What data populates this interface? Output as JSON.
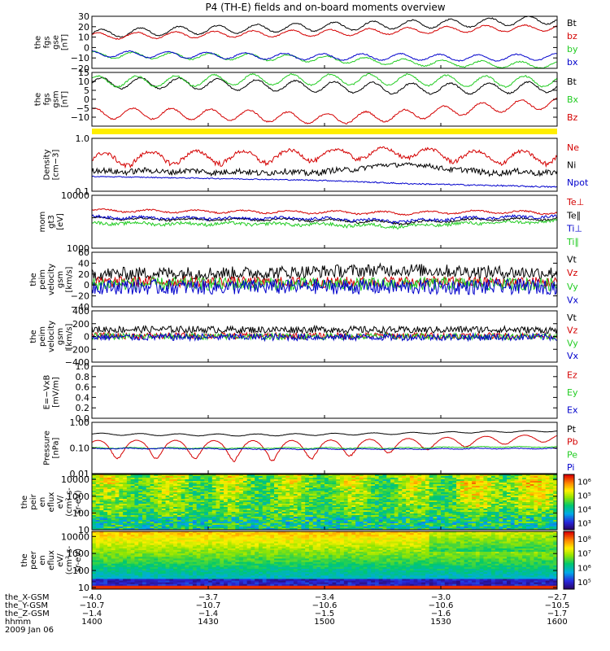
{
  "title": "P4 (TH-E) fields and on-board moments overview",
  "colors": {
    "black": "#000000",
    "red": "#d40000",
    "green": "#22cc22",
    "blue": "#0000cc",
    "yellow": "#ffee00"
  },
  "chart_data": [
    {
      "id": "fgs_gse",
      "type": "line",
      "ylabel": [
        "the",
        "fgs",
        "gse",
        "[nT]"
      ],
      "ylim": [
        -20,
        30
      ],
      "yticks": [
        "30",
        "20",
        "10",
        "0",
        "−10",
        "−20"
      ],
      "yticks_values": [
        30,
        20,
        10,
        0,
        -10,
        -20
      ],
      "series": [
        {
          "name": "Bt",
          "color": "#000000",
          "base": [
            13,
            16,
            18,
            20,
            22,
            24,
            27
          ],
          "amp": 4,
          "periods": 12,
          "noise": 0.6
        },
        {
          "name": "bz",
          "color": "#d40000",
          "base": [
            11,
            12,
            13,
            14,
            16,
            18,
            19
          ],
          "amp": 3,
          "periods": 12,
          "noise": 0.5
        },
        {
          "name": "by",
          "color": "#22cc22",
          "base": [
            -7,
            -8,
            -9,
            -11,
            -14,
            -16,
            -17
          ],
          "amp": 3,
          "periods": 12,
          "noise": 0.6
        },
        {
          "name": "bx",
          "color": "#0000cc",
          "base": [
            -6,
            -7,
            -8,
            -9,
            -9,
            -10,
            -9
          ],
          "amp": 3,
          "periods": 12,
          "noise": 0.5
        }
      ]
    },
    {
      "id": "fgs_gsm",
      "type": "line",
      "ylabel": [
        "the",
        "fgs",
        "gsm",
        "[nT]"
      ],
      "ylim": [
        -15,
        15
      ],
      "yticks": [
        "15",
        "10",
        "5",
        "0",
        "−5",
        "−10"
      ],
      "yticks_values": [
        15,
        10,
        5,
        0,
        -5,
        -10
      ],
      "series": [
        {
          "name": "Bt",
          "color": "#000000",
          "base": [
            9,
            9,
            8,
            7,
            6,
            6,
            7
          ],
          "amp": 3,
          "periods": 12,
          "noise": 0.4
        },
        {
          "name": "Bx",
          "color": "#22cc22",
          "base": [
            10,
            10,
            11,
            11,
            11,
            10,
            10
          ],
          "amp": 3,
          "periods": 12,
          "noise": 0.4
        },
        {
          "name": "Bz",
          "color": "#d40000",
          "base": [
            -8,
            -8,
            -9,
            -11,
            -9,
            -5,
            -2
          ],
          "amp": 3,
          "periods": 12,
          "noise": 0.4
        }
      ]
    },
    {
      "id": "density",
      "type": "line",
      "scale": "log",
      "ylabel": [
        "Density",
        "[cm−3]"
      ],
      "ylim": [
        0.1,
        1.0
      ],
      "yticks": [
        "1.0",
        "0.1"
      ],
      "yticks_values": [
        1.0,
        0.1
      ],
      "series": [
        {
          "name": "Ne",
          "color": "#d40000",
          "base": [
            0.4,
            0.45,
            0.45,
            0.5,
            0.55,
            0.45,
            0.45
          ],
          "amp": 0.12,
          "periods": 10,
          "noise": 0.04
        },
        {
          "name": "Ni",
          "color": "#000000",
          "base": [
            0.24,
            0.24,
            0.23,
            0.23,
            0.33,
            0.23,
            0.23
          ],
          "amp": 0.01,
          "periods": 10,
          "noise": 0.03
        },
        {
          "name": "Npot",
          "color": "#0000cc",
          "base": [
            0.19,
            0.18,
            0.17,
            0.16,
            0.14,
            0.13,
            0.12
          ],
          "amp": 0,
          "periods": 1,
          "noise": 0.004
        }
      ]
    },
    {
      "id": "mom_temp",
      "type": "line",
      "scale": "log",
      "ylabel": [
        "mom",
        "gt3",
        "[eV]"
      ],
      "ylim": [
        1000,
        10000
      ],
      "yticks": [
        "10000",
        "1000"
      ],
      "yticks_values": [
        10000,
        1000
      ],
      "series": [
        {
          "name": "Te⊥",
          "color": "#d40000",
          "base": [
            5200,
            5000,
            4900,
            4800,
            4600,
            4900,
            4700
          ],
          "amp": 300,
          "periods": 10,
          "noise": 150
        },
        {
          "name": "Te∥",
          "color": "#000000",
          "base": [
            3700,
            3500,
            3500,
            3400,
            3000,
            3500,
            3600
          ],
          "amp": 150,
          "periods": 10,
          "noise": 150
        },
        {
          "name": "Ti⊥",
          "color": "#0000cc",
          "base": [
            3900,
            3700,
            3700,
            3600,
            3200,
            3800,
            4000
          ],
          "amp": 150,
          "periods": 10,
          "noise": 220
        },
        {
          "name": "Ti∥",
          "color": "#22cc22",
          "base": [
            3000,
            2900,
            2900,
            2800,
            2600,
            3000,
            3200
          ],
          "amp": 120,
          "periods": 10,
          "noise": 200
        }
      ]
    },
    {
      "id": "peim_gsm_a",
      "type": "line",
      "ylabel": [
        "the",
        "peim",
        "velocity",
        "gsm",
        "[km/s]"
      ],
      "ylim": [
        -40,
        60
      ],
      "yticks": [
        "60",
        "40",
        "20",
        "0",
        "−20",
        "−40"
      ],
      "yticks_values": [
        60,
        40,
        20,
        0,
        -20,
        -40
      ],
      "series": [
        {
          "name": "Vt",
          "color": "#000000",
          "base": [
            20,
            22,
            22,
            25,
            28,
            24,
            22
          ],
          "amp": 0,
          "periods": 1,
          "noise": 12
        },
        {
          "name": "Vz",
          "color": "#d40000",
          "base": [
            5,
            6,
            5,
            5,
            6,
            5,
            5
          ],
          "amp": 0,
          "periods": 1,
          "noise": 10
        },
        {
          "name": "Vy",
          "color": "#22cc22",
          "base": [
            2,
            2,
            2,
            1,
            2,
            2,
            1
          ],
          "amp": 0,
          "periods": 1,
          "noise": 12
        },
        {
          "name": "Vx",
          "color": "#0000cc",
          "base": [
            -3,
            -4,
            -4,
            -3,
            -4,
            -4,
            -3
          ],
          "amp": 0,
          "periods": 1,
          "noise": 14
        }
      ]
    },
    {
      "id": "peim_gsm_b",
      "type": "line",
      "ylabel": [
        "the",
        "peim",
        "velocity",
        "gsm",
        "[km/s]"
      ],
      "ylim": [
        -400,
        400
      ],
      "yticks": [
        "400",
        "200",
        "0",
        "−200",
        "−400"
      ],
      "yticks_values": [
        400,
        200,
        0,
        -200,
        -400
      ],
      "series": [
        {
          "name": "Vt",
          "color": "#000000",
          "base": [
            110,
            110,
            105,
            110,
            100,
            110,
            100
          ],
          "amp": 0,
          "periods": 1,
          "noise": 55
        },
        {
          "name": "Vz",
          "color": "#d40000",
          "base": [
            10,
            10,
            10,
            10,
            10,
            10,
            10
          ],
          "amp": 0,
          "periods": 1,
          "noise": 50
        },
        {
          "name": "Vy",
          "color": "#22cc22",
          "base": [
            0,
            0,
            0,
            0,
            0,
            0,
            0
          ],
          "amp": 0,
          "periods": 1,
          "noise": 50
        },
        {
          "name": "Vx",
          "color": "#0000cc",
          "base": [
            -10,
            -10,
            -10,
            -10,
            -10,
            -10,
            -10
          ],
          "amp": 0,
          "periods": 1,
          "noise": 55
        }
      ]
    },
    {
      "id": "e_vxb",
      "type": "line",
      "ylabel": [
        "E=−VxB",
        "[mV/m]"
      ],
      "ylim": [
        0.0,
        1.0
      ],
      "yticks": [
        "1.0",
        "0.8",
        "0.6",
        "0.4",
        "0.2",
        "0.0"
      ],
      "yticks_values": [
        1.0,
        0.8,
        0.6,
        0.4,
        0.2,
        0.0
      ],
      "series": [
        {
          "name": "Ez",
          "color": "#d40000",
          "empty": true
        },
        {
          "name": "Ey",
          "color": "#22cc22",
          "empty": true
        },
        {
          "name": "Ex",
          "color": "#0000cc",
          "empty": true
        }
      ]
    },
    {
      "id": "pressure",
      "type": "line",
      "scale": "log",
      "ylabel": [
        "Pressure",
        "[nPa]"
      ],
      "ylim": [
        0.01,
        1.0
      ],
      "yticks": [
        "1.00",
        "0.10",
        "0.01"
      ],
      "yticks_values": [
        1.0,
        0.1,
        0.01
      ],
      "series": [
        {
          "name": "Pt",
          "color": "#000000",
          "base": [
            0.35,
            0.33,
            0.32,
            0.34,
            0.37,
            0.42,
            0.46
          ],
          "amp": 0.03,
          "periods": 12,
          "noise": 0.005
        },
        {
          "name": "Pb",
          "color": "#d40000",
          "base": [
            0.12,
            0.12,
            0.11,
            0.12,
            0.15,
            0.2,
            0.26
          ],
          "amp": 0.08,
          "periods": 12,
          "noise": 0.004
        },
        {
          "name": "Pe",
          "color": "#22cc22",
          "base": [
            0.1,
            0.1,
            0.1,
            0.1,
            0.1,
            0.11,
            0.11
          ],
          "amp": 0.004,
          "periods": 12,
          "noise": 0.003
        },
        {
          "name": "Pi",
          "color": "#0000cc",
          "base": [
            0.095,
            0.095,
            0.09,
            0.09,
            0.09,
            0.095,
            0.095
          ],
          "amp": 0.003,
          "periods": 12,
          "noise": 0.003
        }
      ]
    },
    {
      "id": "peir_en_eflux",
      "type": "heatmap",
      "scale": "log",
      "ylabel": [
        "the",
        "peir",
        "en",
        "eflux",
        "eV/",
        "(cm²-s-",
        "sr-eV)"
      ],
      "ylim": [
        10,
        20000
      ],
      "yticks": [
        "10000",
        "1000",
        "100",
        "10"
      ],
      "yticks_values": [
        10000,
        1000,
        100,
        10
      ],
      "colorbar": {
        "ticks": [
          "10⁶",
          "10⁵",
          "10⁴",
          "10³"
        ],
        "tick_exponents": [
          6,
          5,
          4,
          3
        ],
        "range": [
          2.5,
          6.5
        ]
      }
    },
    {
      "id": "peer_en_eflux",
      "type": "heatmap",
      "scale": "log",
      "ylabel": [
        "the",
        "peer",
        "en",
        "eflux",
        "eV/",
        "(cm²-s-",
        "sr-eV)"
      ],
      "ylim": [
        8,
        20000
      ],
      "yticks": [
        "10000",
        "1000",
        "100",
        "10"
      ],
      "yticks_values": [
        10000,
        1000,
        100,
        10
      ],
      "colorbar": {
        "ticks": [
          "10⁸",
          "10⁷",
          "10⁶",
          "10⁵"
        ],
        "tick_exponents": [
          8,
          7,
          6,
          5
        ],
        "range": [
          4.5,
          8.5
        ]
      }
    }
  ],
  "xaxis": {
    "rows": [
      {
        "label": "the_X-GSM",
        "values": [
          "−4.0",
          "−3.7",
          "−3.4",
          "−3.0",
          "−2.7"
        ]
      },
      {
        "label": "the_Y-GSM",
        "values": [
          "−10.7",
          "−10.7",
          "−10.6",
          "−10.6",
          "−10.5"
        ]
      },
      {
        "label": "the_Z-GSM",
        "values": [
          "−1.4",
          "−1.4",
          "−1.5",
          "−1.6",
          "−1.7"
        ]
      },
      {
        "label": "hhmm",
        "values": [
          "1400",
          "1430",
          "1500",
          "1530",
          "1600"
        ]
      }
    ],
    "date": "2009 Jan 06",
    "range_minutes": [
      0,
      120
    ],
    "tick_minutes": [
      0,
      30,
      60,
      90,
      120
    ]
  }
}
